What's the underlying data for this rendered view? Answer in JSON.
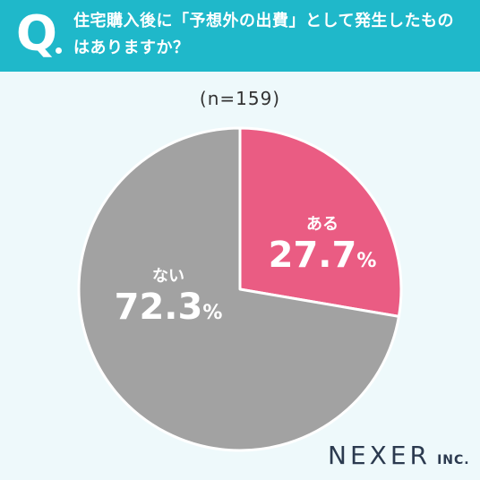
{
  "header": {
    "q_mark": "Q",
    "question": "住宅購入後に「予想外の出費」として発生したものはありますか？"
  },
  "chart_data": {
    "type": "pie",
    "n_label": "(n=159)",
    "slices": [
      {
        "label": "ある",
        "value": 27.7,
        "value_text": "27.7",
        "color": "#ea5c83"
      },
      {
        "label": "ない",
        "value": 72.3,
        "value_text": "72.3",
        "color": "#a2a2a2"
      }
    ],
    "unit": "%"
  },
  "logo": {
    "main": "NEXER",
    "sub": "INC."
  }
}
